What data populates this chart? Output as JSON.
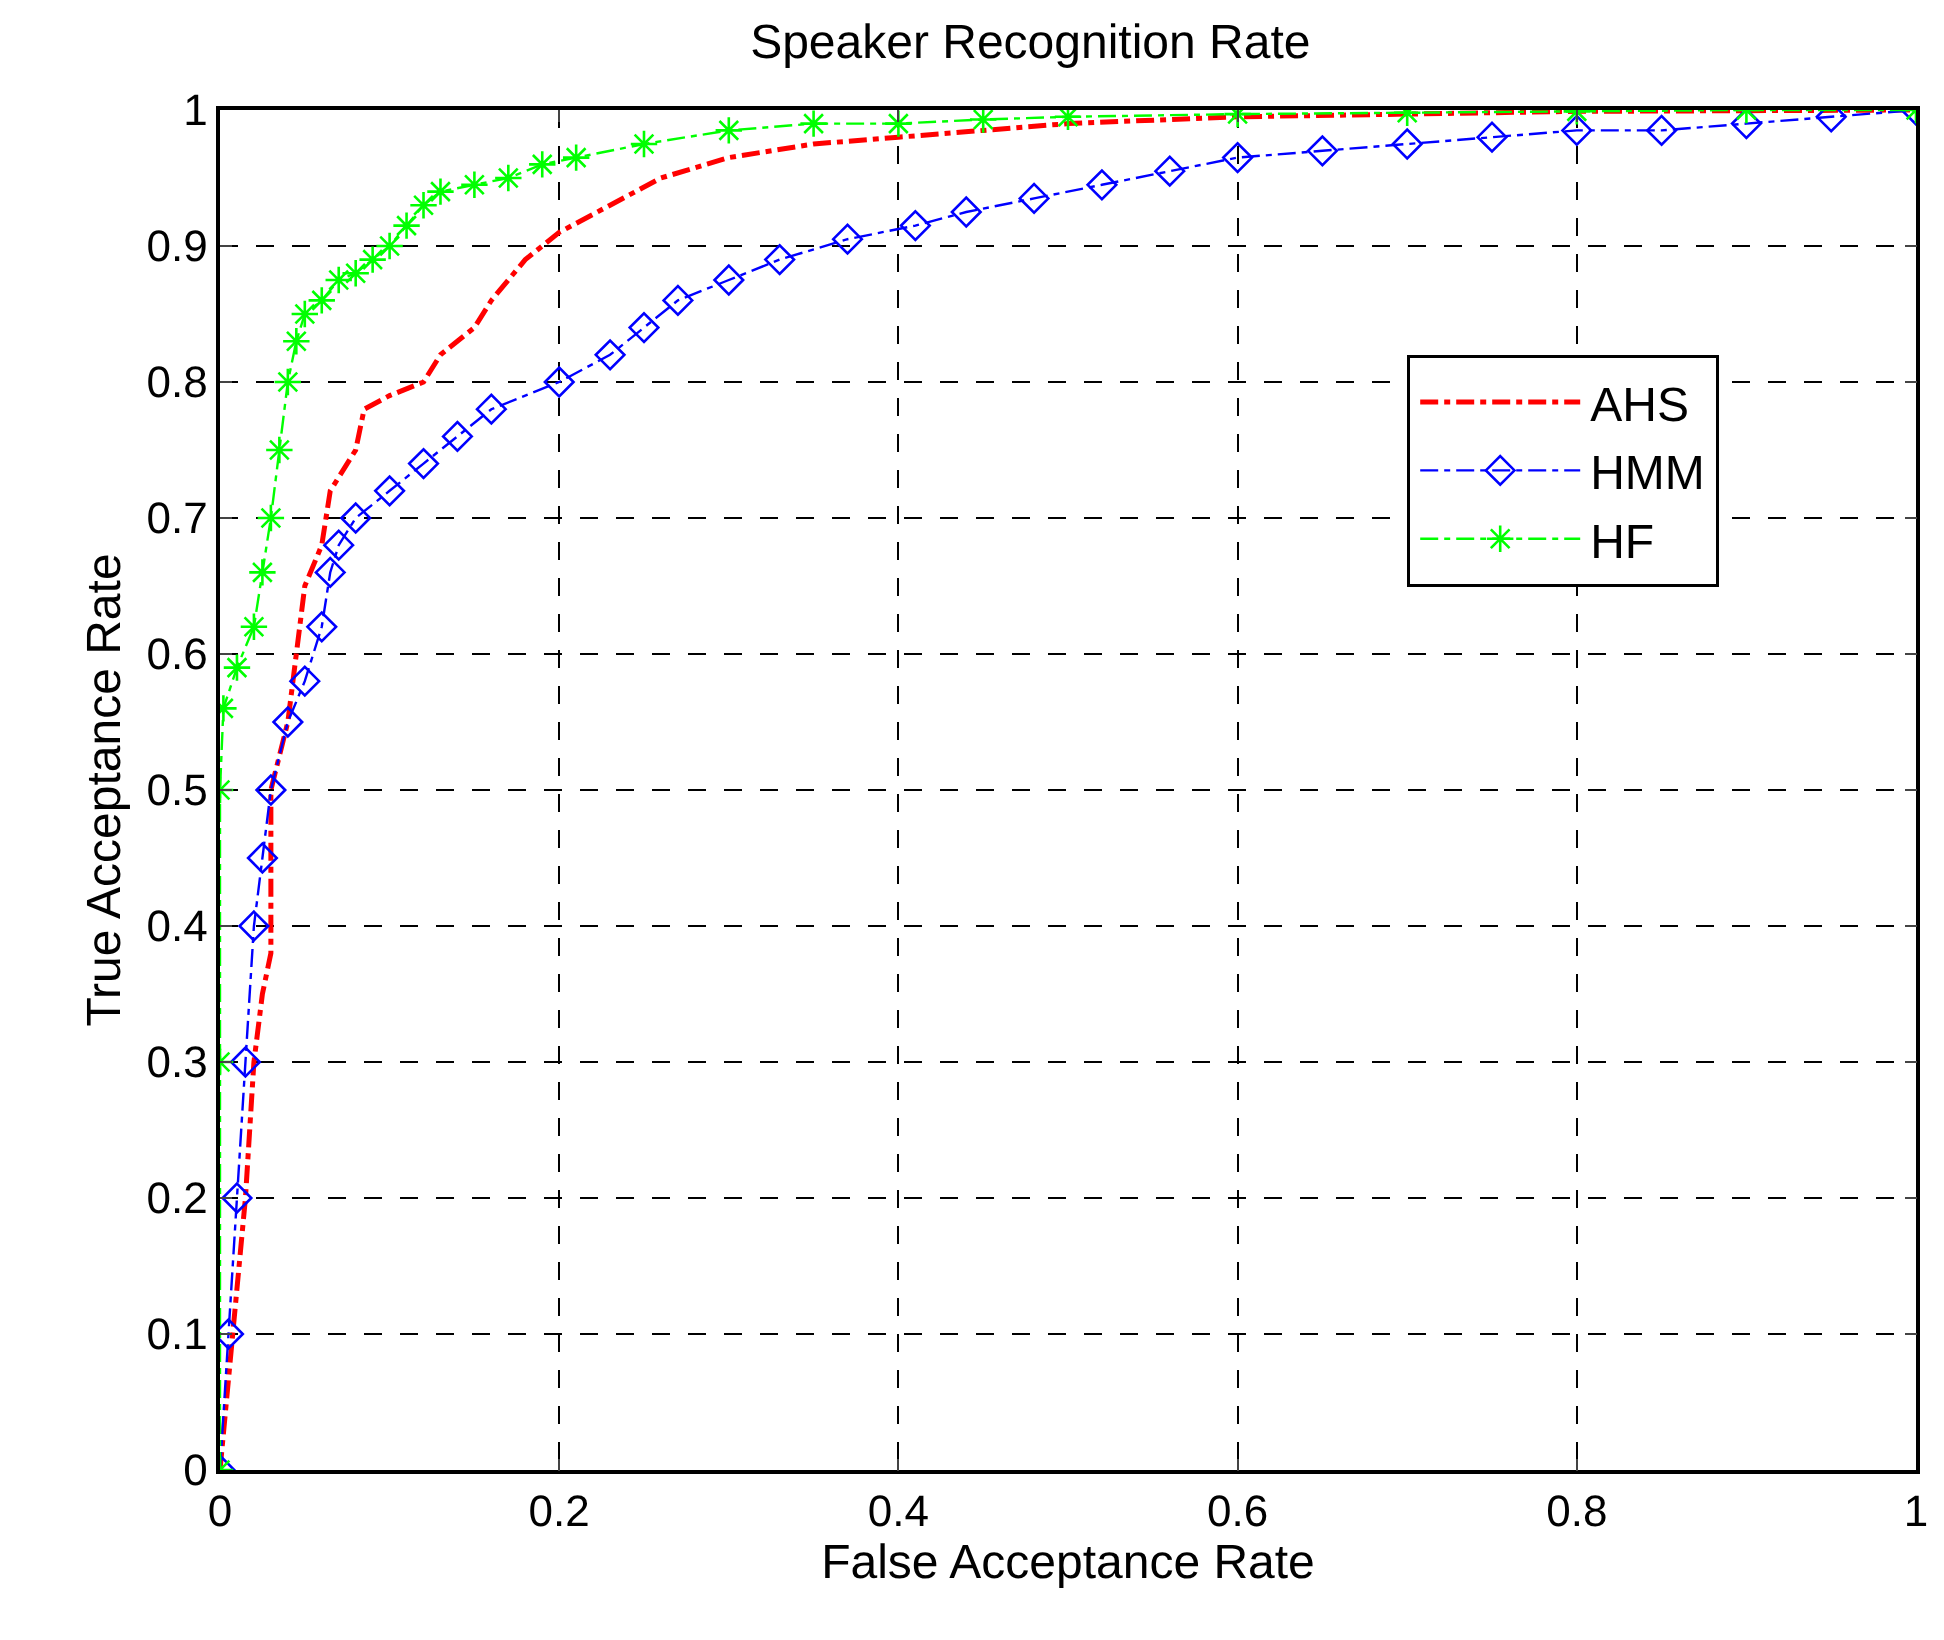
{
  "chart_data": {
    "type": "line",
    "title": "Speaker Recognition Rate",
    "xlabel": "False Acceptance Rate",
    "ylabel": "True Acceptance Rate",
    "xlim": [
      0,
      1
    ],
    "ylim": [
      0,
      1
    ],
    "xticks": [
      0,
      0.2,
      0.4,
      0.6,
      0.8,
      1
    ],
    "yticks": [
      0,
      0.1,
      0.2,
      0.3,
      0.4,
      0.5,
      0.6,
      0.7,
      0.8,
      0.9,
      1
    ],
    "grid": true,
    "legend": "right",
    "line_style": "dashed",
    "series": [
      {
        "name": "AHS",
        "color": "#ff0000",
        "marker": "none",
        "x": [
          0,
          0.015,
          0.02,
          0.025,
          0.03,
          0.03,
          0.04,
          0.045,
          0.05,
          0.06,
          0.065,
          0.08,
          0.085,
          0.1,
          0.12,
          0.13,
          0.15,
          0.16,
          0.18,
          0.2,
          0.23,
          0.26,
          0.3,
          0.35,
          0.4,
          0.45,
          0.5,
          0.6,
          0.8,
          1
        ],
        "values": [
          0,
          0.2,
          0.3,
          0.35,
          0.38,
          0.5,
          0.55,
          0.6,
          0.65,
          0.68,
          0.72,
          0.75,
          0.78,
          0.79,
          0.8,
          0.82,
          0.84,
          0.86,
          0.89,
          0.91,
          0.93,
          0.95,
          0.965,
          0.975,
          0.98,
          0.985,
          0.99,
          0.995,
          0.999,
          1
        ]
      },
      {
        "name": "HMM",
        "color": "#0000ff",
        "marker": "diamond",
        "x": [
          0,
          0.005,
          0.01,
          0.015,
          0.02,
          0.025,
          0.03,
          0.04,
          0.05,
          0.06,
          0.065,
          0.07,
          0.08,
          0.1,
          0.12,
          0.14,
          0.16,
          0.2,
          0.23,
          0.25,
          0.27,
          0.3,
          0.33,
          0.37,
          0.41,
          0.44,
          0.48,
          0.52,
          0.56,
          0.6,
          0.65,
          0.7,
          0.75,
          0.8,
          0.85,
          0.9,
          0.95,
          1
        ],
        "values": [
          0,
          0.1,
          0.2,
          0.3,
          0.4,
          0.45,
          0.5,
          0.55,
          0.58,
          0.62,
          0.66,
          0.68,
          0.7,
          0.72,
          0.74,
          0.76,
          0.78,
          0.8,
          0.82,
          0.84,
          0.86,
          0.875,
          0.89,
          0.905,
          0.915,
          0.925,
          0.935,
          0.945,
          0.955,
          0.965,
          0.97,
          0.975,
          0.98,
          0.985,
          0.985,
          0.99,
          0.995,
          1
        ]
      },
      {
        "name": "HF",
        "color": "#00ff00",
        "marker": "cross",
        "x": [
          0,
          0,
          0,
          0.002,
          0.01,
          0.02,
          0.025,
          0.03,
          0.035,
          0.04,
          0.045,
          0.05,
          0.06,
          0.07,
          0.08,
          0.09,
          0.1,
          0.11,
          0.12,
          0.13,
          0.15,
          0.17,
          0.19,
          0.21,
          0.25,
          0.3,
          0.35,
          0.4,
          0.45,
          0.5,
          0.6,
          0.7,
          0.8,
          0.9,
          1
        ],
        "values": [
          0,
          0.3,
          0.5,
          0.56,
          0.59,
          0.62,
          0.66,
          0.7,
          0.75,
          0.8,
          0.83,
          0.85,
          0.86,
          0.875,
          0.88,
          0.89,
          0.9,
          0.915,
          0.93,
          0.94,
          0.945,
          0.95,
          0.96,
          0.965,
          0.975,
          0.985,
          0.99,
          0.99,
          0.993,
          0.995,
          0.997,
          0.998,
          0.999,
          1,
          1
        ]
      }
    ]
  }
}
